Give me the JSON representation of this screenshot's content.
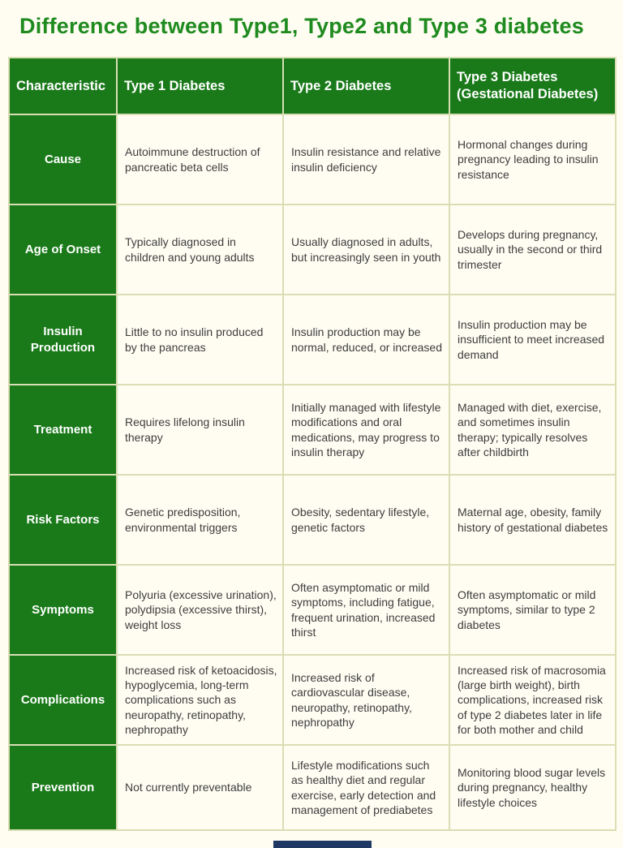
{
  "page": {
    "title": "Difference between Type1, Type2 and Type 3 diabetes"
  },
  "table": {
    "headers": [
      "Characteristic",
      "Type 1 Diabetes",
      "Type 2 Diabetes",
      "Type 3 Diabetes (Gestational Diabetes)"
    ],
    "rows": [
      {
        "label": "Cause",
        "cells": [
          "Autoimmune destruction of pancreatic beta cells",
          "Insulin resistance and relative insulin deficiency",
          "Hormonal changes during pregnancy leading to insulin resistance"
        ]
      },
      {
        "label": "Age of Onset",
        "cells": [
          "Typically diagnosed in children and young adults",
          "Usually diagnosed in adults, but increasingly seen in youth",
          "Develops during pregnancy, usually in the second or third trimester"
        ]
      },
      {
        "label": "Insulin Production",
        "cells": [
          "Little to no insulin produced by the pancreas",
          "Insulin production may be normal, reduced, or increased",
          "Insulin production may be insufficient to meet increased demand"
        ]
      },
      {
        "label": "Treatment",
        "cells": [
          "Requires lifelong insulin therapy",
          "Initially managed with lifestyle modifications and oral medications, may progress to insulin therapy",
          "Managed with diet, exercise, and sometimes insulin therapy; typically resolves after childbirth"
        ]
      },
      {
        "label": "Risk Factors",
        "cells": [
          "Genetic predisposition, environmental triggers",
          "Obesity, sedentary lifestyle, genetic factors",
          "Maternal age, obesity, family history of gestational diabetes"
        ]
      },
      {
        "label": "Symptoms",
        "cells": [
          "Polyuria (excessive urination), polydipsia (excessive thirst), weight loss",
          "Often asymptomatic or mild symptoms, including fatigue, frequent urination, increased thirst",
          "Often asymptomatic or mild symptoms, similar to type 2 diabetes"
        ]
      },
      {
        "label": "Complications",
        "cells": [
          "Increased risk of ketoacidosis, hypoglycemia, long-term complications such as neuropathy, retinopathy, nephropathy",
          "Increased risk of cardiovascular disease, neuropathy, retinopathy, nephropathy",
          "Increased risk of macrosomia (large birth weight), birth complications, increased risk of type 2 diabetes later in life for both mother and child"
        ]
      },
      {
        "label": "Prevention",
        "cells": [
          "Not currently preventable",
          "Lifestyle modifications such as healthy diet and regular exercise, early detection and management of prediabetes",
          "Monitoring blood sugar levels during pregnancy, healthy lifestyle choices"
        ]
      }
    ]
  },
  "colors": {
    "title_green": "#1f8b1f",
    "cell_green": "#1a7a1a",
    "border_olive": "#d9deb4",
    "background_cream": "#fffdf2",
    "body_text": "#3d3d3d",
    "footer_bar_navy": "#1f3864"
  }
}
